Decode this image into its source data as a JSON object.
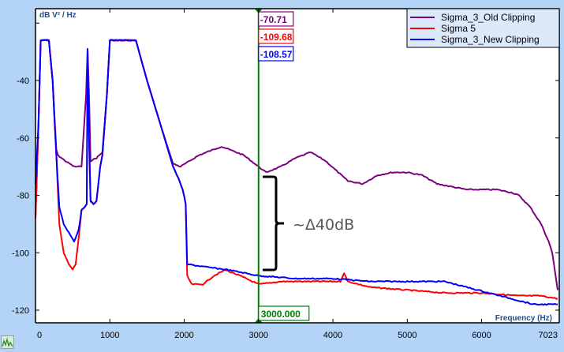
{
  "chart_data": {
    "type": "line",
    "title": "",
    "xlabel": "Frequency (Hz)",
    "ylabel": "dB V² / Hz",
    "xlim": [
      0,
      7023
    ],
    "ylim": [
      -125,
      -15
    ],
    "x_ticks": [
      0,
      1000,
      2000,
      3000,
      4000,
      5000,
      6000,
      7023
    ],
    "y_ticks": [
      -40,
      -60,
      -80,
      -100,
      -120
    ],
    "grid": false,
    "legend_position": "upper right",
    "series": [
      {
        "name": "Sigma_3_Old Clipping",
        "color": "#800080",
        "points": [
          [
            0,
            -88
          ],
          [
            40,
            -55
          ],
          [
            70,
            -26
          ],
          [
            180,
            -26
          ],
          [
            230,
            -40
          ],
          [
            280,
            -64
          ],
          [
            300,
            -66
          ],
          [
            400,
            -68
          ],
          [
            520,
            -70
          ],
          [
            620,
            -70
          ],
          [
            680,
            -45
          ],
          [
            700,
            -29
          ],
          [
            720,
            -45
          ],
          [
            740,
            -68
          ],
          [
            820,
            -67
          ],
          [
            900,
            -65
          ],
          [
            960,
            -45
          ],
          [
            1000,
            -26
          ],
          [
            1350,
            -26
          ],
          [
            1500,
            -40
          ],
          [
            1700,
            -57
          ],
          [
            1850,
            -69
          ],
          [
            1950,
            -70
          ],
          [
            2200,
            -66
          ],
          [
            2500,
            -63
          ],
          [
            2800,
            -66
          ],
          [
            3000,
            -70
          ],
          [
            3100,
            -72
          ],
          [
            3300,
            -70
          ],
          [
            3500,
            -67
          ],
          [
            3700,
            -65
          ],
          [
            3900,
            -68
          ],
          [
            4200,
            -75
          ],
          [
            4400,
            -76
          ],
          [
            4600,
            -73
          ],
          [
            4800,
            -72
          ],
          [
            5000,
            -72
          ],
          [
            5200,
            -73
          ],
          [
            5400,
            -76
          ],
          [
            5600,
            -77
          ],
          [
            5800,
            -78
          ],
          [
            6000,
            -78
          ],
          [
            6200,
            -78
          ],
          [
            6400,
            -79
          ],
          [
            6500,
            -80
          ],
          [
            6650,
            -84
          ],
          [
            6800,
            -90
          ],
          [
            6900,
            -96
          ],
          [
            6950,
            -100
          ],
          [
            7023,
            -113
          ]
        ]
      },
      {
        "name": "Sigma 5",
        "color": "#ff0000",
        "points": [
          [
            0,
            -88
          ],
          [
            40,
            -55
          ],
          [
            70,
            -26
          ],
          [
            180,
            -26
          ],
          [
            230,
            -40
          ],
          [
            280,
            -66
          ],
          [
            320,
            -90
          ],
          [
            380,
            -100
          ],
          [
            450,
            -104
          ],
          [
            500,
            -106
          ],
          [
            540,
            -104
          ],
          [
            580,
            -95
          ],
          [
            620,
            -85
          ],
          [
            660,
            -84
          ],
          [
            690,
            -83
          ],
          [
            700,
            -29
          ],
          [
            720,
            -60
          ],
          [
            740,
            -82
          ],
          [
            780,
            -83
          ],
          [
            820,
            -82
          ],
          [
            870,
            -70
          ],
          [
            900,
            -66
          ],
          [
            960,
            -45
          ],
          [
            1000,
            -26
          ],
          [
            1350,
            -26
          ],
          [
            1500,
            -40
          ],
          [
            1700,
            -57
          ],
          [
            1850,
            -70
          ],
          [
            1920,
            -74
          ],
          [
            1980,
            -78
          ],
          [
            2020,
            -83
          ],
          [
            2040,
            -108
          ],
          [
            2100,
            -111
          ],
          [
            2250,
            -111
          ],
          [
            2400,
            -108
          ],
          [
            2550,
            -106
          ],
          [
            2750,
            -108
          ],
          [
            3000,
            -111
          ],
          [
            3300,
            -110
          ],
          [
            3600,
            -110
          ],
          [
            3900,
            -110
          ],
          [
            4100,
            -110
          ],
          [
            4150,
            -107
          ],
          [
            4200,
            -110
          ],
          [
            4500,
            -112
          ],
          [
            5000,
            -113
          ],
          [
            5500,
            -114
          ],
          [
            6000,
            -114
          ],
          [
            6500,
            -115
          ],
          [
            6800,
            -115
          ],
          [
            7023,
            -116
          ]
        ]
      },
      {
        "name": "Sigma_3_New Clipping",
        "color": "#0000ff",
        "points": [
          [
            0,
            -76
          ],
          [
            40,
            -55
          ],
          [
            70,
            -26
          ],
          [
            180,
            -26
          ],
          [
            230,
            -40
          ],
          [
            280,
            -66
          ],
          [
            320,
            -84
          ],
          [
            380,
            -90
          ],
          [
            450,
            -93
          ],
          [
            520,
            -96
          ],
          [
            580,
            -92
          ],
          [
            620,
            -85
          ],
          [
            660,
            -84
          ],
          [
            690,
            -83
          ],
          [
            700,
            -29
          ],
          [
            720,
            -60
          ],
          [
            740,
            -82
          ],
          [
            780,
            -83
          ],
          [
            820,
            -82
          ],
          [
            870,
            -70
          ],
          [
            900,
            -66
          ],
          [
            960,
            -45
          ],
          [
            1000,
            -26
          ],
          [
            1350,
            -26
          ],
          [
            1500,
            -40
          ],
          [
            1700,
            -57
          ],
          [
            1850,
            -70
          ],
          [
            1920,
            -74
          ],
          [
            1980,
            -78
          ],
          [
            2020,
            -83
          ],
          [
            2040,
            -104
          ],
          [
            2300,
            -105
          ],
          [
            2600,
            -106
          ],
          [
            3000,
            -108
          ],
          [
            3500,
            -109
          ],
          [
            4000,
            -109
          ],
          [
            4500,
            -110
          ],
          [
            5000,
            -110
          ],
          [
            5500,
            -110
          ],
          [
            5800,
            -112
          ],
          [
            6100,
            -114
          ],
          [
            6400,
            -116
          ],
          [
            6700,
            -118
          ],
          [
            7023,
            -118
          ]
        ]
      }
    ],
    "cursor": {
      "x": 3000,
      "x_label": "3000.000",
      "values": [
        {
          "series": "Sigma_3_Old Clipping",
          "label": "-70.71",
          "color": "#800080"
        },
        {
          "series": "Sigma 5",
          "label": "-109.68",
          "color": "#ff0000"
        },
        {
          "series": "Sigma_3_New Clipping",
          "label": "-108.57",
          "color": "#0000ff"
        }
      ],
      "color": "#008000"
    },
    "annotations": [
      {
        "text": "~Δ40dB",
        "type": "brace",
        "x": 3150,
        "y_top": -73,
        "y_bottom": -106
      }
    ]
  },
  "axes": {
    "y_unit_label": "dB V² / Hz",
    "x_unit_label": "Frequency (Hz)"
  }
}
